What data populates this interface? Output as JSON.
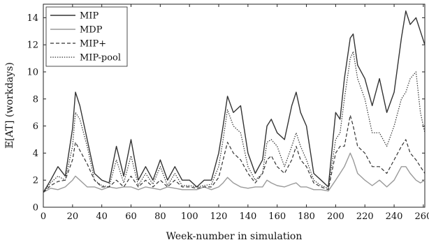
{
  "chart_data": {
    "type": "line",
    "xlabel": "Week-number in simulation",
    "ylabel": "𝔼[AT] (workdays)",
    "xlim": [
      0,
      261
    ],
    "ylim": [
      0,
      15
    ],
    "xticks": [
      0,
      20,
      40,
      60,
      80,
      100,
      120,
      140,
      160,
      180,
      200,
      220,
      240,
      260
    ],
    "yticks": [
      0,
      2,
      4,
      6,
      8,
      10,
      12,
      14
    ],
    "grid": false,
    "legend_position": "top-left",
    "x": [
      0,
      5,
      10,
      15,
      20,
      22,
      25,
      30,
      35,
      40,
      45,
      50,
      55,
      60,
      65,
      70,
      75,
      80,
      85,
      90,
      95,
      100,
      105,
      110,
      115,
      120,
      123,
      126,
      130,
      135,
      140,
      145,
      150,
      153,
      156,
      160,
      165,
      170,
      173,
      176,
      180,
      185,
      190,
      195,
      200,
      203,
      206,
      210,
      212,
      215,
      220,
      225,
      230,
      235,
      240,
      245,
      248,
      251,
      255,
      258,
      261
    ],
    "series": [
      {
        "name": "MIP",
        "color": "#333333",
        "dash": "solid",
        "values": [
          1.1,
          2.0,
          3.0,
          2.3,
          5.8,
          8.5,
          7.5,
          5.0,
          2.5,
          2.0,
          1.8,
          4.5,
          2.3,
          5.0,
          2.0,
          3.0,
          2.0,
          3.5,
          2.0,
          3.0,
          2.0,
          2.0,
          1.5,
          2.0,
          2.0,
          4.0,
          6.0,
          8.2,
          7.0,
          7.5,
          4.0,
          2.5,
          3.5,
          6.0,
          6.5,
          5.5,
          5.0,
          7.5,
          8.5,
          7.0,
          6.0,
          2.5,
          2.0,
          1.5,
          7.0,
          6.5,
          9.5,
          12.5,
          12.8,
          10.5,
          9.5,
          7.5,
          9.5,
          7.0,
          8.5,
          12.5,
          14.5,
          13.5,
          14.0,
          13.0,
          12.0
        ]
      },
      {
        "name": "MDP",
        "color": "#9a9a9a",
        "dash": "solid",
        "values": [
          1.1,
          1.4,
          1.3,
          1.5,
          2.0,
          2.3,
          2.0,
          1.5,
          1.5,
          1.3,
          1.5,
          1.4,
          1.5,
          1.5,
          1.3,
          1.5,
          1.4,
          1.3,
          1.5,
          1.4,
          1.3,
          1.3,
          1.3,
          1.5,
          1.3,
          1.5,
          1.8,
          2.2,
          1.8,
          1.5,
          1.4,
          1.5,
          1.5,
          2.0,
          1.8,
          1.6,
          1.5,
          1.7,
          1.8,
          1.5,
          1.5,
          1.3,
          1.3,
          1.2,
          2.0,
          2.5,
          3.0,
          4.0,
          3.5,
          2.5,
          2.0,
          1.6,
          2.0,
          1.5,
          2.0,
          3.0,
          3.0,
          2.5,
          2.0,
          1.8,
          2.0
        ]
      },
      {
        "name": "MIP+",
        "color": "#333333",
        "dash": "dashed",
        "values": [
          1.1,
          1.6,
          1.9,
          2.0,
          3.5,
          4.8,
          4.2,
          3.2,
          2.0,
          1.5,
          1.5,
          2.0,
          1.5,
          2.3,
          1.5,
          2.0,
          1.5,
          2.0,
          1.5,
          2.0,
          1.5,
          1.5,
          1.4,
          1.5,
          1.5,
          2.2,
          3.5,
          4.8,
          4.0,
          3.5,
          2.5,
          1.8,
          2.5,
          3.5,
          3.8,
          3.0,
          2.5,
          3.5,
          4.5,
          3.5,
          3.0,
          1.8,
          1.5,
          1.3,
          4.0,
          4.5,
          4.5,
          6.8,
          6.0,
          4.5,
          4.0,
          3.0,
          3.0,
          2.5,
          3.5,
          4.5,
          5.0,
          4.0,
          3.5,
          3.0,
          2.5
        ]
      },
      {
        "name": "MIP-pool",
        "color": "#333333",
        "dash": "dotted",
        "values": [
          1.1,
          1.8,
          2.3,
          2.0,
          4.5,
          7.0,
          6.5,
          4.5,
          2.0,
          1.6,
          1.5,
          3.5,
          1.8,
          3.8,
          1.6,
          2.5,
          1.7,
          3.0,
          1.6,
          2.5,
          1.6,
          1.6,
          1.5,
          1.6,
          1.7,
          3.0,
          5.0,
          7.2,
          6.0,
          5.5,
          3.0,
          2.0,
          2.5,
          4.8,
          5.0,
          4.5,
          3.0,
          4.5,
          5.5,
          4.5,
          3.5,
          2.0,
          1.6,
          1.4,
          5.0,
          5.5,
          8.0,
          11.0,
          11.5,
          9.5,
          8.0,
          5.5,
          5.5,
          4.5,
          6.0,
          8.0,
          8.5,
          9.5,
          10.0,
          7.0,
          5.5
        ]
      }
    ]
  }
}
